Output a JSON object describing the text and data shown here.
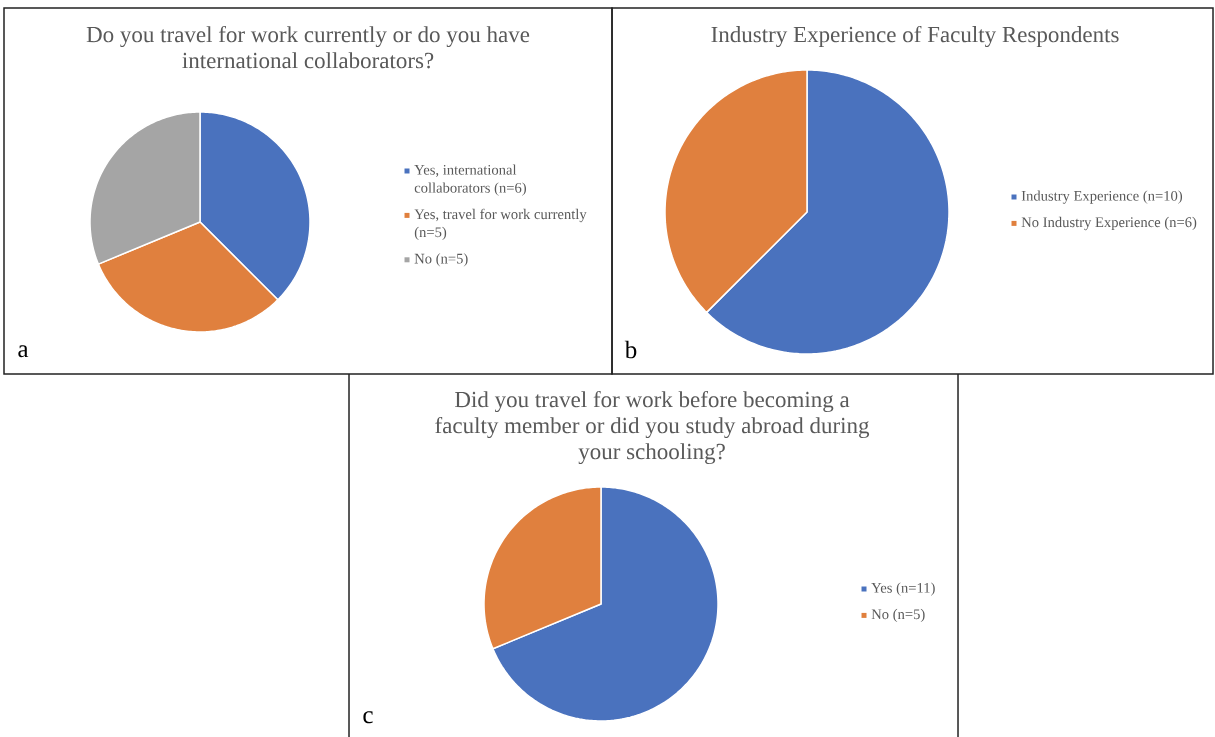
{
  "chart_data": [
    {
      "type": "pie",
      "title": "Do you travel for work currently or do you have international collaborators?",
      "categories": [
        "Yes, international collaborators (n=6)",
        "Yes, travel for work currently (n=5)",
        "No (n=5)"
      ],
      "values": [
        6,
        5,
        5
      ],
      "colors": [
        "#4a72be",
        "#e0803e",
        "#a5a5a5"
      ],
      "legend": "right",
      "annotations": [
        "a"
      ]
    },
    {
      "type": "pie",
      "title": "Industry Experience of Faculty Respondents",
      "categories": [
        "Industry Experience (n=10)",
        "No Industry Experience (n=6)"
      ],
      "values": [
        10,
        6
      ],
      "colors": [
        "#4a72be",
        "#e0803e"
      ],
      "legend": "right",
      "annotations": [
        "b"
      ]
    },
    {
      "type": "pie",
      "title": "Did you travel for work before becoming a faculty member or did you study abroad during your schooling?",
      "categories": [
        "Yes (n=11)",
        "No (n=5)"
      ],
      "values": [
        11,
        5
      ],
      "colors": [
        "#4a72be",
        "#e0803e"
      ],
      "legend": "right",
      "annotations": [
        "c"
      ]
    }
  ]
}
